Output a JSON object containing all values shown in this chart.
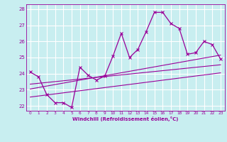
{
  "xlabel": "Windchill (Refroidissement éolien,°C)",
  "xlim": [
    -0.5,
    23.5
  ],
  "ylim": [
    21.7,
    28.3
  ],
  "yticks": [
    22,
    23,
    24,
    25,
    26,
    27,
    28
  ],
  "xticks": [
    0,
    1,
    2,
    3,
    4,
    5,
    6,
    7,
    8,
    9,
    10,
    11,
    12,
    13,
    14,
    15,
    16,
    17,
    18,
    19,
    20,
    21,
    22,
    23
  ],
  "bg_color": "#c8eef0",
  "line_color": "#990099",
  "grid_color": "#ffffff",
  "main_line_x": [
    0,
    1,
    2,
    3,
    4,
    5,
    6,
    7,
    8,
    9,
    10,
    11,
    12,
    13,
    14,
    15,
    16,
    17,
    18,
    19,
    20,
    21,
    22,
    23
  ],
  "main_line_y": [
    24.1,
    23.8,
    22.7,
    22.2,
    22.2,
    21.9,
    24.4,
    23.9,
    23.6,
    23.85,
    25.1,
    26.5,
    25.0,
    25.5,
    26.6,
    27.8,
    27.8,
    27.1,
    26.8,
    25.2,
    25.3,
    26.0,
    25.8,
    24.9
  ],
  "line1_x": [
    0,
    23
  ],
  "line1_y": [
    23.35,
    24.55
  ],
  "line2_x": [
    0,
    23
  ],
  "line2_y": [
    23.05,
    25.15
  ],
  "line3_x": [
    0,
    23
  ],
  "line3_y": [
    22.55,
    24.05
  ]
}
